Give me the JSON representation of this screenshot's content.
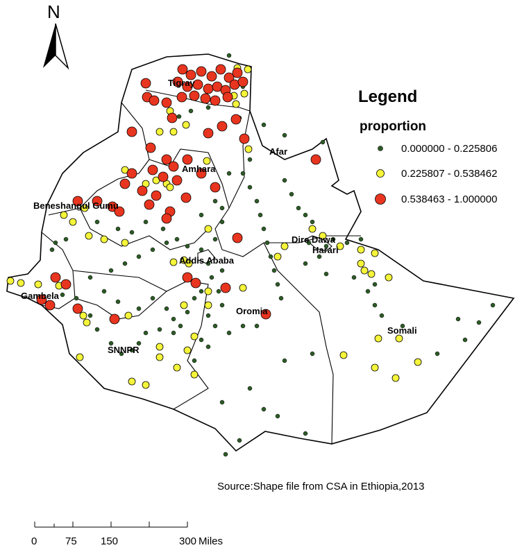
{
  "north_label": "N",
  "legend": {
    "title": "Legend",
    "subtitle": "proportion",
    "classes": [
      {
        "label": "0.000000 - 0.225806",
        "color": "#2d5a27"
      },
      {
        "label": "0.225807 - 0.538462",
        "color": "#f5f53a"
      },
      {
        "label": "0.538463 - 1.000000",
        "color": "#e8351f"
      }
    ]
  },
  "regions": [
    "Tigray",
    "Afar",
    "Amhara",
    "Beneshangul Gumu",
    "Dire Dawa",
    "Harari",
    "Addis Ababa",
    "Gambela",
    "Oromia",
    "Somali",
    "SNNPR"
  ],
  "source": "Source:Shape file from CSA in Ethiopia,2013",
  "scale": {
    "ticks": [
      "0",
      "37.5",
      "75",
      "150",
      "225",
      "300"
    ],
    "labels": [
      "0",
      "75",
      "150",
      "300"
    ],
    "unit": "Miles"
  }
}
